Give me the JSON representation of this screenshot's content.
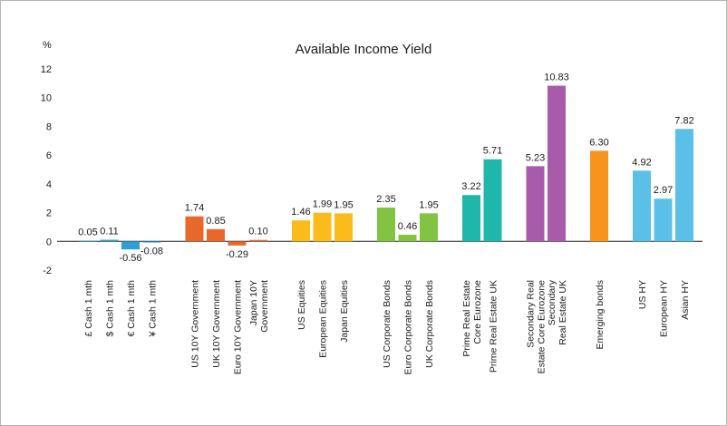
{
  "chart_data": {
    "type": "bar",
    "title": "Available Income Yield",
    "ylabel": "%",
    "xlabel": "",
    "ylim": [
      -2,
      12
    ],
    "yticks": [
      -2,
      0,
      2,
      4,
      6,
      8,
      10,
      12
    ],
    "grid": false,
    "legend": "none",
    "groups": [
      {
        "color": "#2e9fd3",
        "bars": [
          {
            "label": [
              "£ Cash 1 mth"
            ],
            "value": 0.05
          },
          {
            "label": [
              "$ Cash 1 mth"
            ],
            "value": 0.11
          },
          {
            "label": [
              "€ Cash 1 mth"
            ],
            "value": -0.56
          },
          {
            "label": [
              "¥ Cash 1 mth"
            ],
            "value": -0.08
          }
        ]
      },
      {
        "color": "#e8672a",
        "bars": [
          {
            "label": [
              "US 10Y Government"
            ],
            "value": 1.74
          },
          {
            "label": [
              "UK 10Y Government"
            ],
            "value": 0.85
          },
          {
            "label": [
              "Euro 10Y Government"
            ],
            "value": -0.29
          },
          {
            "label": [
              "Japan 10Y",
              "Government"
            ],
            "value": 0.1
          }
        ]
      },
      {
        "color": "#fbbb1a",
        "bars": [
          {
            "label": [
              "US Equities"
            ],
            "value": 1.46
          },
          {
            "label": [
              "European Equities"
            ],
            "value": 1.99
          },
          {
            "label": [
              "Japan Equities"
            ],
            "value": 1.95
          }
        ]
      },
      {
        "color": "#82c341",
        "bars": [
          {
            "label": [
              "US Corporate Bonds"
            ],
            "value": 2.35
          },
          {
            "label": [
              "Euro Corporate Bonds"
            ],
            "value": 0.46
          },
          {
            "label": [
              "UK Corporate Bonds"
            ],
            "value": 1.95
          }
        ]
      },
      {
        "color": "#1fb7ab",
        "bars": [
          {
            "label": [
              "Prime Real Estate",
              "Core Eurozone"
            ],
            "value": 3.22
          },
          {
            "label": [
              "Prime Real Estate UK"
            ],
            "value": 5.71
          }
        ]
      },
      {
        "color": "#a85aab",
        "bars": [
          {
            "label": [
              "Secondary Real",
              "Estate Core Eurozone"
            ],
            "value": 5.23
          },
          {
            "label": [
              "Secondary",
              "Real Estate UK"
            ],
            "value": 10.83
          }
        ]
      },
      {
        "color": "#f7941d",
        "bars": [
          {
            "label": [
              "Emerging bonds"
            ],
            "value": 6.3
          }
        ]
      },
      {
        "color": "#5bc0e8",
        "bars": [
          {
            "label": [
              "US HY"
            ],
            "value": 4.92
          },
          {
            "label": [
              "European HY"
            ],
            "value": 2.97
          },
          {
            "label": [
              "Asian HY"
            ],
            "value": 7.82
          }
        ]
      }
    ]
  }
}
